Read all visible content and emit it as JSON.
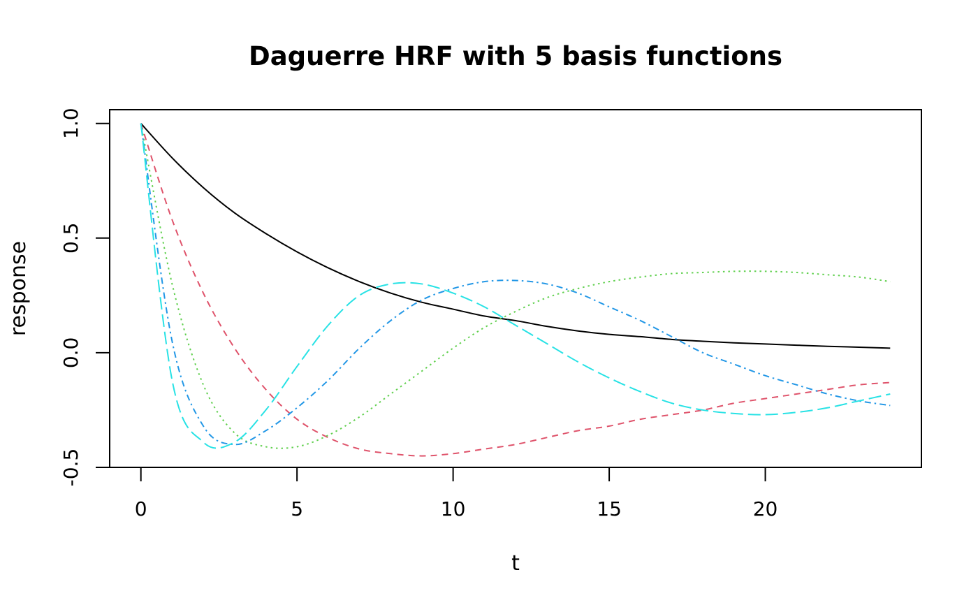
{
  "chart_data": {
    "type": "line",
    "title": "Daguerre HRF with 5 basis functions",
    "xlabel": "t",
    "ylabel": "response",
    "xlim": [
      -1,
      25
    ],
    "ylim": [
      -0.5,
      1.06
    ],
    "xticks": [
      0,
      5,
      10,
      15,
      20
    ],
    "yticks": [
      -0.5,
      0.0,
      0.5,
      1.0
    ],
    "xtick_labels": [
      "0",
      "5",
      "10",
      "15",
      "20"
    ],
    "ytick_labels": [
      "-0.5",
      "0.0",
      "0.5",
      "1.0"
    ],
    "grid": false,
    "legend": "none",
    "series": [
      {
        "color": "#000000",
        "dash": "solid",
        "x": [
          0,
          1,
          2,
          3,
          4,
          5,
          6,
          7,
          8,
          9,
          10,
          11,
          12,
          13,
          14,
          15,
          16,
          17,
          18,
          19,
          20,
          21,
          22,
          23,
          24
        ],
        "y": [
          1.0,
          0.85,
          0.72,
          0.61,
          0.52,
          0.44,
          0.37,
          0.31,
          0.26,
          0.22,
          0.19,
          0.16,
          0.14,
          0.115,
          0.095,
          0.08,
          0.07,
          0.058,
          0.05,
          0.043,
          0.038,
          0.033,
          0.028,
          0.024,
          0.02
        ]
      },
      {
        "color": "#DF536B",
        "dash": "dashed",
        "x": [
          0,
          1,
          2,
          3,
          4,
          5,
          6,
          7,
          8,
          9,
          10,
          11,
          12,
          13,
          14,
          15,
          16,
          17,
          18,
          19,
          20,
          21,
          22,
          23,
          24
        ],
        "y": [
          1.0,
          0.58,
          0.26,
          0.02,
          -0.16,
          -0.29,
          -0.37,
          -0.42,
          -0.44,
          -0.45,
          -0.44,
          -0.42,
          -0.4,
          -0.37,
          -0.34,
          -0.32,
          -0.29,
          -0.27,
          -0.25,
          -0.22,
          -0.2,
          -0.18,
          -0.16,
          -0.14,
          -0.13
        ]
      },
      {
        "color": "#61D04F",
        "dash": "dotted",
        "x": [
          0,
          1,
          2,
          3,
          4,
          5,
          6,
          7,
          8,
          9,
          10,
          11,
          12,
          13,
          14,
          15,
          16,
          17,
          18,
          19,
          20,
          21,
          22,
          23,
          24
        ],
        "y": [
          1.0,
          0.3,
          -0.14,
          -0.35,
          -0.41,
          -0.41,
          -0.36,
          -0.28,
          -0.18,
          -0.08,
          0.02,
          0.11,
          0.18,
          0.24,
          0.28,
          0.31,
          0.33,
          0.345,
          0.35,
          0.355,
          0.355,
          0.35,
          0.34,
          0.33,
          0.31
        ]
      },
      {
        "color": "#2297E6",
        "dash": "dashdot",
        "x": [
          0,
          1,
          2,
          3,
          4,
          5,
          6,
          7,
          8,
          9,
          10,
          11,
          12,
          13,
          14,
          15,
          16,
          17,
          18,
          19,
          20,
          21,
          22,
          23,
          24
        ],
        "y": [
          1.0,
          0.05,
          -0.32,
          -0.4,
          -0.34,
          -0.24,
          -0.12,
          0.02,
          0.14,
          0.23,
          0.28,
          0.31,
          0.315,
          0.3,
          0.26,
          0.2,
          0.14,
          0.07,
          0.0,
          -0.05,
          -0.1,
          -0.14,
          -0.18,
          -0.21,
          -0.23
        ]
      },
      {
        "color": "#28E2E5",
        "dash": "longdash",
        "x": [
          0,
          1,
          2,
          3,
          4,
          5,
          6,
          7,
          8,
          9,
          10,
          11,
          12,
          13,
          14,
          15,
          16,
          17,
          18,
          19,
          20,
          21,
          22,
          23,
          24
        ],
        "y": [
          1.0,
          -0.12,
          -0.39,
          -0.39,
          -0.25,
          -0.06,
          0.12,
          0.25,
          0.3,
          0.3,
          0.26,
          0.2,
          0.12,
          0.04,
          -0.04,
          -0.11,
          -0.17,
          -0.22,
          -0.25,
          -0.265,
          -0.27,
          -0.26,
          -0.24,
          -0.21,
          -0.18
        ]
      }
    ]
  }
}
